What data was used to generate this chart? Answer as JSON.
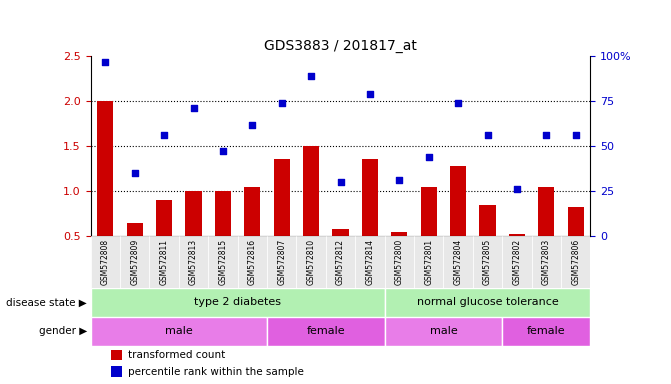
{
  "title": "GDS3883 / 201817_at",
  "samples": [
    "GSM572808",
    "GSM572809",
    "GSM572811",
    "GSM572813",
    "GSM572815",
    "GSM572816",
    "GSM572807",
    "GSM572810",
    "GSM572812",
    "GSM572814",
    "GSM572800",
    "GSM572801",
    "GSM572804",
    "GSM572805",
    "GSM572802",
    "GSM572803",
    "GSM572806"
  ],
  "bar_values": [
    2.0,
    0.65,
    0.9,
    1.0,
    1.0,
    1.05,
    1.35,
    1.5,
    0.58,
    1.35,
    0.55,
    1.05,
    1.28,
    0.85,
    0.52,
    1.05,
    0.82
  ],
  "scatter_values": [
    2.43,
    1.2,
    1.62,
    1.92,
    1.44,
    1.73,
    1.98,
    2.27,
    1.1,
    2.08,
    1.12,
    1.38,
    1.98,
    1.62,
    1.02,
    1.62,
    1.62
  ],
  "ylim": [
    0.5,
    2.5
  ],
  "yticks_left": [
    0.5,
    1.0,
    1.5,
    2.0,
    2.5
  ],
  "yticks_right": [
    0,
    25,
    50,
    75,
    100
  ],
  "bar_color": "#cc0000",
  "scatter_color": "#0000cc",
  "dotted_lines": [
    1.0,
    1.5,
    2.0
  ],
  "disease_state_groups": [
    {
      "label": "type 2 diabetes",
      "start": 0,
      "end": 9,
      "color": "#b2f0b2"
    },
    {
      "label": "normal glucose tolerance",
      "start": 10,
      "end": 16,
      "color": "#b2f0b2"
    }
  ],
  "gender_groups": [
    {
      "label": "male",
      "start": 0,
      "end": 5,
      "color": "#e87de8"
    },
    {
      "label": "female",
      "start": 6,
      "end": 9,
      "color": "#e060e0"
    },
    {
      "label": "male",
      "start": 10,
      "end": 13,
      "color": "#e87de8"
    },
    {
      "label": "female",
      "start": 14,
      "end": 16,
      "color": "#e060e0"
    }
  ],
  "legend_items": [
    {
      "label": "transformed count",
      "color": "#cc0000"
    },
    {
      "label": "percentile rank within the sample",
      "color": "#0000cc"
    }
  ],
  "bg_color": "#e8e8e8"
}
